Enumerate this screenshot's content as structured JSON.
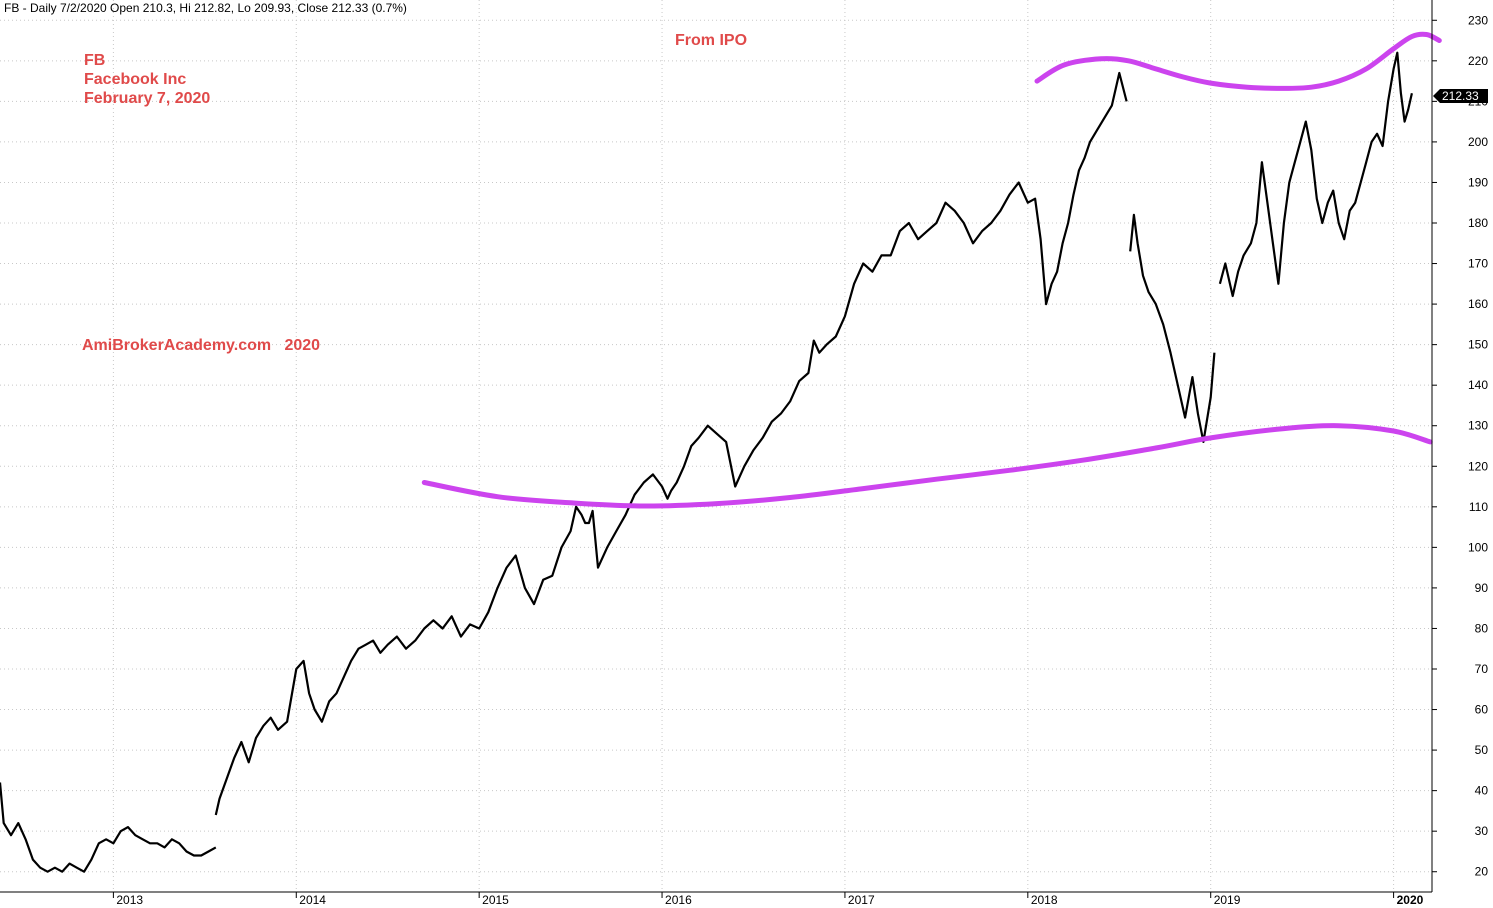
{
  "header": {
    "text": "FB - Daily 7/2/2020 Open 210.3, Hi 212.82, Lo 209.93, Close 212.33 (0.7%)"
  },
  "annotations": {
    "ticker": "FB",
    "company": "Facebook Inc",
    "date": "February 7, 2020",
    "from_ipo": "From IPO",
    "watermark": "AmiBrokerAcademy.com   2020"
  },
  "colors": {
    "price": "#000000",
    "trend_curve": "#cc44ee",
    "annotation_text": "#e04a4a",
    "grid": "#c8c8c8"
  },
  "chart_data": {
    "type": "line",
    "title": "",
    "xlabel": "",
    "ylabel": "",
    "ylim": [
      15,
      235
    ],
    "y_ticks": [
      20,
      30,
      40,
      50,
      60,
      70,
      80,
      90,
      100,
      110,
      120,
      130,
      140,
      150,
      160,
      170,
      180,
      190,
      200,
      210,
      220,
      230
    ],
    "x_tick_labels": [
      "2013",
      "2014",
      "2015",
      "2016",
      "2017",
      "2018",
      "2019",
      "2020"
    ],
    "grid": true,
    "last_close": "212.33",
    "series": [
      {
        "x": [
          2012.38,
          2012.4,
          2012.44,
          2012.48,
          2012.52,
          2012.56,
          2012.6,
          2012.64,
          2012.68,
          2012.72,
          2012.76,
          2012.8,
          2012.84,
          2012.88,
          2012.92,
          2012.96,
          2013.0,
          2013.04,
          2013.08,
          2013.12,
          2013.16,
          2013.2,
          2013.24,
          2013.28,
          2013.32,
          2013.36,
          2013.4,
          2013.44,
          2013.48,
          2013.52,
          2013.56
        ],
        "values": [
          42,
          32,
          29,
          32,
          28,
          23,
          21,
          20,
          21,
          20,
          22,
          21,
          20,
          23,
          27,
          28,
          27,
          30,
          31,
          29,
          28,
          27,
          27,
          26,
          28,
          27,
          25,
          24,
          24,
          25,
          26
        ]
      },
      {
        "x": [
          2013.56,
          2013.58,
          2013.62,
          2013.66,
          2013.7,
          2013.74,
          2013.78,
          2013.82,
          2013.86,
          2013.9,
          2013.95,
          2014.0,
          2014.04,
          2014.07,
          2014.1,
          2014.14,
          2014.18,
          2014.22,
          2014.26,
          2014.3,
          2014.34,
          2014.38,
          2014.42,
          2014.46,
          2014.5,
          2014.55,
          2014.6,
          2014.65,
          2014.7,
          2014.75,
          2014.8,
          2014.85,
          2014.9,
          2014.95,
          2015.0,
          2015.05,
          2015.1,
          2015.15,
          2015.2,
          2015.25,
          2015.3,
          2015.35,
          2015.4,
          2015.45,
          2015.5,
          2015.53,
          2015.56,
          2015.58,
          2015.6,
          2015.62,
          2015.65,
          2015.7,
          2015.75,
          2015.8,
          2015.85,
          2015.9,
          2015.95,
          2016.0,
          2016.03,
          2016.05,
          2016.08,
          2016.12,
          2016.16,
          2016.2,
          2016.25,
          2016.3,
          2016.35,
          2016.4,
          2016.45,
          2016.5,
          2016.55,
          2016.6,
          2016.65,
          2016.7,
          2016.75,
          2016.8,
          2016.83,
          2016.86,
          2016.9,
          2016.95,
          2017.0,
          2017.05,
          2017.1,
          2017.15,
          2017.2,
          2017.25,
          2017.3,
          2017.35,
          2017.4,
          2017.45,
          2017.5,
          2017.55,
          2017.6,
          2017.65,
          2017.7,
          2017.75,
          2017.8,
          2017.85,
          2017.9,
          2017.95,
          2018.0,
          2018.04,
          2018.07,
          2018.1,
          2018.13,
          2018.16,
          2018.19,
          2018.22,
          2018.25,
          2018.28,
          2018.31,
          2018.34,
          2018.38,
          2018.42,
          2018.46,
          2018.5,
          2018.54
        ],
        "values": [
          34,
          38,
          43,
          48,
          52,
          47,
          53,
          56,
          58,
          55,
          57,
          70,
          72,
          64,
          60,
          57,
          62,
          64,
          68,
          72,
          75,
          76,
          77,
          74,
          76,
          78,
          75,
          77,
          80,
          82,
          80,
          83,
          78,
          81,
          80,
          84,
          90,
          95,
          98,
          90,
          86,
          92,
          93,
          100,
          104,
          110,
          108,
          106,
          106,
          109,
          95,
          100,
          104,
          108,
          113,
          116,
          118,
          115,
          112,
          114,
          116,
          120,
          125,
          127,
          130,
          128,
          126,
          115,
          120,
          124,
          127,
          131,
          133,
          136,
          141,
          143,
          151,
          148,
          150,
          152,
          157,
          165,
          170,
          168,
          172,
          172,
          178,
          180,
          176,
          178,
          180,
          185,
          183,
          180,
          175,
          178,
          180,
          183,
          187,
          190,
          185,
          186,
          176,
          160,
          165,
          168,
          175,
          180,
          187,
          193,
          196,
          200,
          203,
          206,
          209,
          217,
          210
        ]
      },
      {
        "x": [
          2018.56,
          2018.58,
          2018.6,
          2018.63,
          2018.66,
          2018.7,
          2018.74,
          2018.78,
          2018.82,
          2018.86,
          2018.9,
          2018.93,
          2018.96,
          2019.0,
          2019.02
        ],
        "values": [
          173,
          182,
          175,
          167,
          163,
          160,
          155,
          148,
          140,
          132,
          142,
          133,
          126,
          137,
          148
        ]
      },
      {
        "x": [
          2019.05,
          2019.08,
          2019.12,
          2019.15,
          2019.18,
          2019.22,
          2019.25,
          2019.28,
          2019.31,
          2019.34,
          2019.37,
          2019.4,
          2019.43,
          2019.46,
          2019.49,
          2019.52,
          2019.55,
          2019.58,
          2019.61,
          2019.64,
          2019.67,
          2019.7,
          2019.73,
          2019.76,
          2019.79,
          2019.82,
          2019.85,
          2019.88,
          2019.91,
          2019.94,
          2019.97,
          2020.0,
          2020.02,
          2020.04,
          2020.06,
          2020.08,
          2020.1
        ],
        "values": [
          165,
          170,
          162,
          168,
          172,
          175,
          180,
          195,
          185,
          175,
          165,
          180,
          190,
          195,
          200,
          205,
          198,
          186,
          180,
          185,
          188,
          180,
          176,
          183,
          185,
          190,
          195,
          200,
          202,
          199,
          210,
          218,
          222,
          212,
          205,
          208,
          212
        ]
      }
    ],
    "trend_curves": [
      {
        "x": [
          2014.7,
          2015.1,
          2015.5,
          2015.9,
          2016.3,
          2016.7,
          2017.1,
          2017.5,
          2017.9,
          2018.3,
          2018.7,
          2019.0,
          2019.4,
          2019.7,
          2020.0,
          2020.2
        ],
        "values": [
          116,
          112.5,
          111,
          110.2,
          110.8,
          112.3,
          114.5,
          116.8,
          119,
          121.5,
          124.5,
          127,
          129.3,
          130,
          128.7,
          126
        ]
      },
      {
        "x": [
          2018.05,
          2018.2,
          2018.4,
          2018.55,
          2018.7,
          2018.85,
          2019.0,
          2019.2,
          2019.4,
          2019.55,
          2019.7,
          2019.85,
          2020.0,
          2020.1,
          2020.18,
          2020.25
        ],
        "values": [
          215,
          219,
          220.5,
          220,
          218,
          216,
          214.5,
          213.5,
          213.2,
          213.5,
          215,
          218,
          223,
          226,
          226.5,
          225
        ]
      }
    ]
  }
}
